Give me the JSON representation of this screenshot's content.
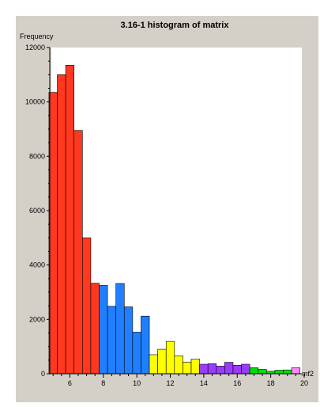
{
  "chart_data": {
    "type": "bar",
    "title": "3.16-1 histogram of matrix",
    "ylabel": "Frequency",
    "xlabel": "mf2",
    "xlim": [
      4.8,
      20
    ],
    "ylim": [
      0,
      12000
    ],
    "x_ticks": [
      "6",
      "8",
      "10",
      "12",
      "14",
      "16",
      "18",
      "20"
    ],
    "y_ticks": [
      "0",
      "2000",
      "4000",
      "6000",
      "8000",
      "10000",
      "12000"
    ],
    "bin_width": 0.5,
    "bins": [
      {
        "x": 4.75,
        "value": 10350,
        "color": "#ff3820"
      },
      {
        "x": 5.25,
        "value": 11000,
        "color": "#ff3820"
      },
      {
        "x": 5.75,
        "value": 11350,
        "color": "#ff3820"
      },
      {
        "x": 6.25,
        "value": 8950,
        "color": "#ff3820"
      },
      {
        "x": 6.75,
        "value": 5000,
        "color": "#ff3820"
      },
      {
        "x": 7.25,
        "value": 3330,
        "color": "#ff3820"
      },
      {
        "x": 7.75,
        "value": 3250,
        "color": "#1f7fff"
      },
      {
        "x": 8.25,
        "value": 2480,
        "color": "#1f7fff"
      },
      {
        "x": 8.75,
        "value": 3320,
        "color": "#1f7fff"
      },
      {
        "x": 9.25,
        "value": 2460,
        "color": "#1f7fff"
      },
      {
        "x": 9.75,
        "value": 1530,
        "color": "#1f7fff"
      },
      {
        "x": 10.25,
        "value": 2120,
        "color": "#1f7fff"
      },
      {
        "x": 10.75,
        "value": 700,
        "color": "#ffff00"
      },
      {
        "x": 11.25,
        "value": 900,
        "color": "#ffff00"
      },
      {
        "x": 11.75,
        "value": 1190,
        "color": "#ffff00"
      },
      {
        "x": 12.25,
        "value": 660,
        "color": "#ffff00"
      },
      {
        "x": 12.75,
        "value": 430,
        "color": "#ffff00"
      },
      {
        "x": 13.25,
        "value": 540,
        "color": "#ffff00"
      },
      {
        "x": 13.75,
        "value": 350,
        "color": "#9a3cff"
      },
      {
        "x": 14.25,
        "value": 370,
        "color": "#9a3cff"
      },
      {
        "x": 14.75,
        "value": 280,
        "color": "#9a3cff"
      },
      {
        "x": 15.25,
        "value": 420,
        "color": "#9a3cff"
      },
      {
        "x": 15.75,
        "value": 310,
        "color": "#9a3cff"
      },
      {
        "x": 16.25,
        "value": 350,
        "color": "#9a3cff"
      },
      {
        "x": 16.75,
        "value": 220,
        "color": "#00e000"
      },
      {
        "x": 17.25,
        "value": 160,
        "color": "#00e000"
      },
      {
        "x": 17.75,
        "value": 90,
        "color": "#00e000"
      },
      {
        "x": 18.25,
        "value": 130,
        "color": "#00e000"
      },
      {
        "x": 18.75,
        "value": 140,
        "color": "#00e000"
      },
      {
        "x": 19.25,
        "value": 220,
        "color": "#ff88ff"
      }
    ],
    "grid": false,
    "legend": "none"
  }
}
